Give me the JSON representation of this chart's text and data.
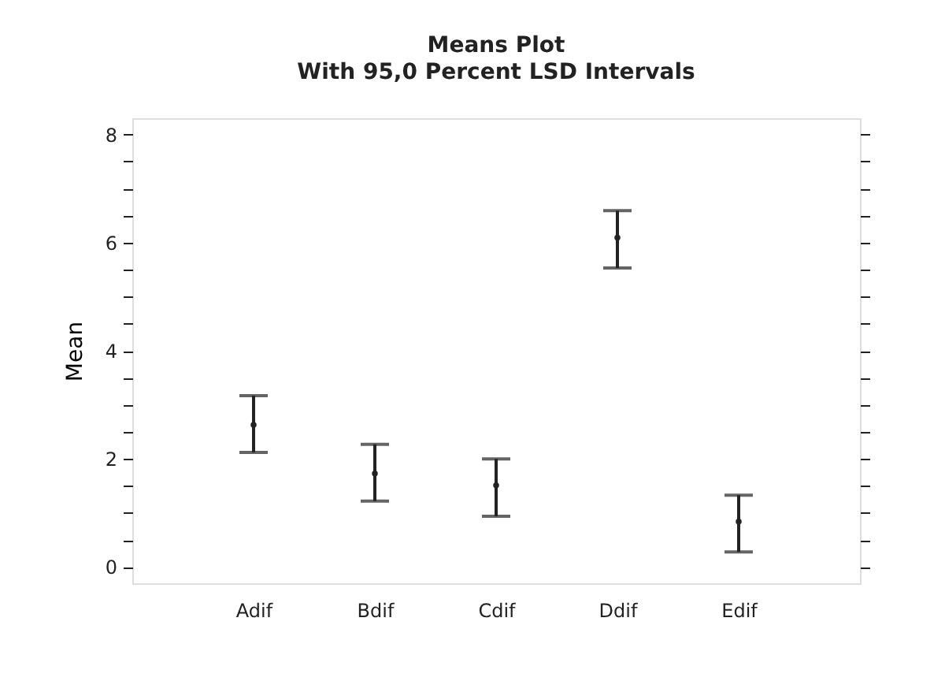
{
  "chart_data": {
    "type": "scatter",
    "title": "Means Plot",
    "subtitle": "With 95,0 Percent LSD Intervals",
    "ylabel": "Mean",
    "categories": [
      "Adif",
      "Bdif",
      "Cdif",
      "Ddif",
      "Edif"
    ],
    "values": [
      2.63,
      1.73,
      1.51,
      6.09,
      0.84
    ],
    "errors": [
      [
        2.12,
        3.17
      ],
      [
        1.22,
        2.27
      ],
      [
        0.94,
        2.0
      ],
      [
        5.53,
        6.59
      ],
      [
        0.28,
        1.33
      ]
    ],
    "color": "#222222",
    "marker": "circle",
    "grid": false,
    "ylim": [
      -0.3,
      8.3
    ],
    "yticks": [
      0,
      {
        "value": 0.5,
        "label": null
      },
      {
        "value": 1,
        "label": null
      },
      {
        "value": 1.5,
        "label": null
      },
      2,
      {
        "value": 2.5,
        "label": null
      },
      {
        "value": 3,
        "label": null
      },
      {
        "value": 3.5,
        "label": null
      },
      4,
      {
        "value": 4.5,
        "label": null
      },
      {
        "value": 5,
        "label": null
      },
      {
        "value": 5.5,
        "label": null
      },
      6,
      {
        "value": 6.5,
        "label": null
      },
      {
        "value": 7,
        "label": null
      },
      {
        "value": 7.5,
        "label": null
      },
      8
    ]
  }
}
